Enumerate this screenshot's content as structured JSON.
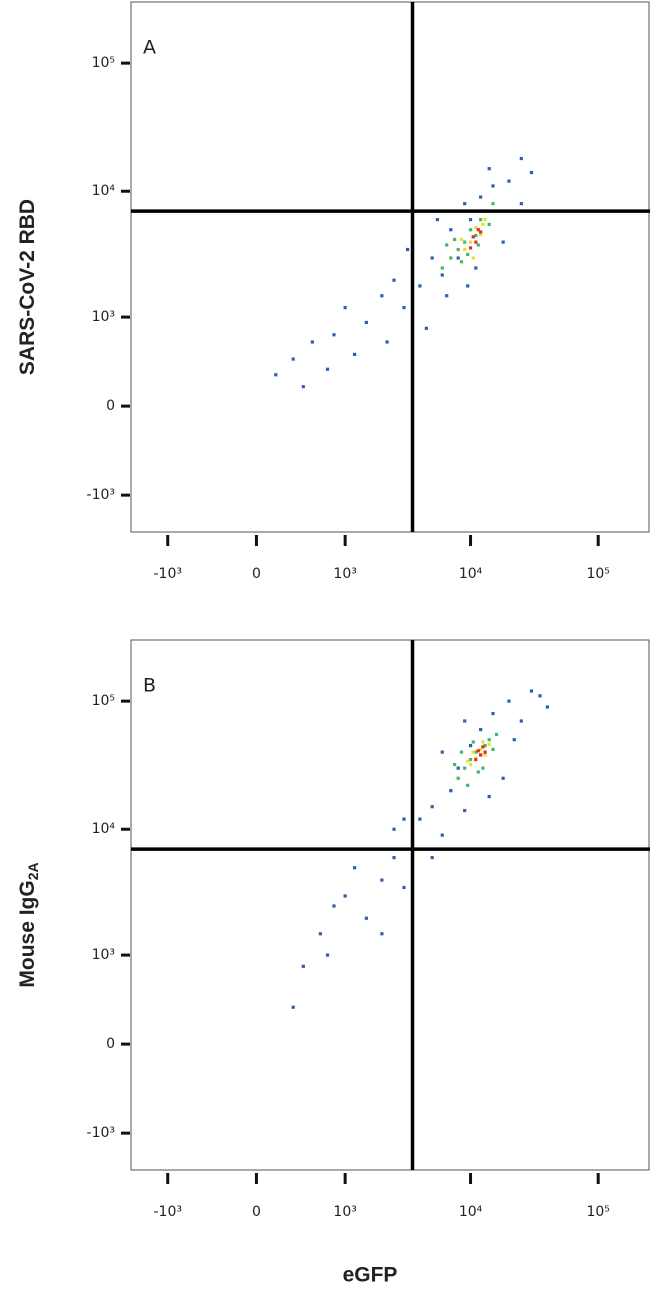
{
  "chart_data": [
    {
      "type": "scatter",
      "label": "A",
      "ylabel": {
        "text": "SARS-CoV-2 RBD"
      },
      "xscale": "biexponential",
      "yscale": "biexponential",
      "xlim": [
        -2000,
        250000
      ],
      "ylim": [
        -2000,
        300000
      ],
      "xticks": [
        {
          "value": -1000,
          "label": "-10³"
        },
        0,
        {
          "value": 1000,
          "label": "10³"
        },
        {
          "value": 10000,
          "label": "10⁴"
        },
        {
          "value": 100000,
          "label": "10⁵"
        }
      ],
      "yticks": [
        {
          "value": -1000,
          "label": "-10³"
        },
        0,
        {
          "value": 1000,
          "label": "10³"
        },
        {
          "value": 10000,
          "label": "10⁴"
        },
        {
          "value": 100000,
          "label": "10⁵"
        }
      ],
      "quadrant_x": 3500,
      "quadrant_y": 7000,
      "series": [
        {
          "color": "#2f5fae",
          "x": [
            150,
            300,
            500,
            800,
            1000,
            1500,
            2000,
            2500,
            3000,
            3500,
            4000,
            5000,
            6000,
            7000,
            8000,
            9000,
            10000,
            12000,
            15000,
            20000,
            25000,
            30000,
            18000,
            4500,
            6500,
            2200,
            1200,
            700,
            3200,
            5500,
            11000,
            14000,
            9500,
            400,
            25000
          ],
          "y": [
            250,
            400,
            600,
            700,
            1200,
            900,
            1500,
            2000,
            1200,
            2500,
            1800,
            3000,
            2200,
            5000,
            3000,
            8000,
            6000,
            9000,
            11000,
            12000,
            8000,
            14000,
            4000,
            800,
            1500,
            600,
            450,
            300,
            3500,
            6000,
            2500,
            15000,
            1800,
            150,
            18000
          ]
        },
        {
          "color": "#3fb86a",
          "x": [
            6000,
            7000,
            8000,
            9000,
            10000,
            11000,
            12000,
            8500,
            13000,
            7500,
            9500,
            15000,
            6500,
            11500,
            14000
          ],
          "y": [
            2500,
            3000,
            3500,
            4000,
            5000,
            4500,
            6000,
            2800,
            7000,
            4200,
            3200,
            8000,
            3800,
            3800,
            5500
          ]
        },
        {
          "color": "#e8e030",
          "x": [
            9000,
            10000,
            11000,
            12000,
            10500,
            13000,
            8500,
            12500
          ],
          "y": [
            3500,
            4000,
            5200,
            4600,
            3000,
            6000,
            4200,
            5500
          ]
        },
        {
          "color": "#e0301e",
          "x": [
            10000,
            11000,
            12000,
            10500,
            11500
          ],
          "y": [
            3600,
            4000,
            4800,
            4400,
            5000
          ]
        }
      ]
    },
    {
      "type": "scatter",
      "label": "B",
      "ylabel": {
        "text": "Mouse IgG",
        "subscript": "2A"
      },
      "xlabel": "eGFP",
      "xscale": "biexponential",
      "yscale": "biexponential",
      "xlim": [
        -2000,
        250000
      ],
      "ylim": [
        -2000,
        300000
      ],
      "xticks": [
        {
          "value": -1000,
          "label": "-10³"
        },
        0,
        {
          "value": 1000,
          "label": "10³"
        },
        {
          "value": 10000,
          "label": "10⁴"
        },
        {
          "value": 100000,
          "label": "10⁵"
        }
      ],
      "yticks": [
        {
          "value": -1000,
          "label": "-10³"
        },
        0,
        {
          "value": 1000,
          "label": "10³"
        },
        {
          "value": 10000,
          "label": "10⁴"
        },
        {
          "value": 100000,
          "label": "10⁵"
        }
      ],
      "quadrant_x": 3500,
      "quadrant_y": 7000,
      "series": [
        {
          "color": "#2f5fae",
          "x": [
            400,
            600,
            800,
            1000,
            1500,
            2000,
            2500,
            3000,
            3500,
            4000,
            5000,
            6000,
            7000,
            8000,
            9000,
            10000,
            12000,
            15000,
            20000,
            25000,
            30000,
            18000,
            5000,
            3000,
            2000,
            1200,
            700,
            6000,
            40000,
            14000,
            22000,
            9000,
            35000,
            300,
            2500
          ],
          "y": [
            800,
            1500,
            2500,
            3000,
            2000,
            4000,
            6000,
            3500,
            8000,
            12000,
            15000,
            9000,
            20000,
            30000,
            14000,
            45000,
            60000,
            80000,
            100000,
            70000,
            120000,
            25000,
            6000,
            12000,
            1500,
            5000,
            1000,
            40000,
            90000,
            18000,
            50000,
            70000,
            110000,
            300,
            10000
          ]
        },
        {
          "color": "#3fb86a",
          "x": [
            8000,
            9000,
            10000,
            11000,
            12000,
            13000,
            9500,
            14000,
            7500,
            15000,
            11500,
            16000,
            8500,
            12500,
            10500
          ],
          "y": [
            25000,
            30000,
            35000,
            40000,
            38000,
            45000,
            22000,
            50000,
            32000,
            42000,
            28000,
            55000,
            40000,
            30000,
            48000
          ]
        },
        {
          "color": "#e8e030",
          "x": [
            10000,
            11000,
            12000,
            13000,
            10500,
            14000,
            9500,
            12500
          ],
          "y": [
            32000,
            36000,
            42000,
            38000,
            40000,
            46000,
            34000,
            48000
          ]
        },
        {
          "color": "#e0301e",
          "x": [
            11000,
            12000,
            12500,
            11500,
            13000
          ],
          "y": [
            35000,
            38000,
            44000,
            41000,
            40000
          ]
        }
      ]
    }
  ]
}
